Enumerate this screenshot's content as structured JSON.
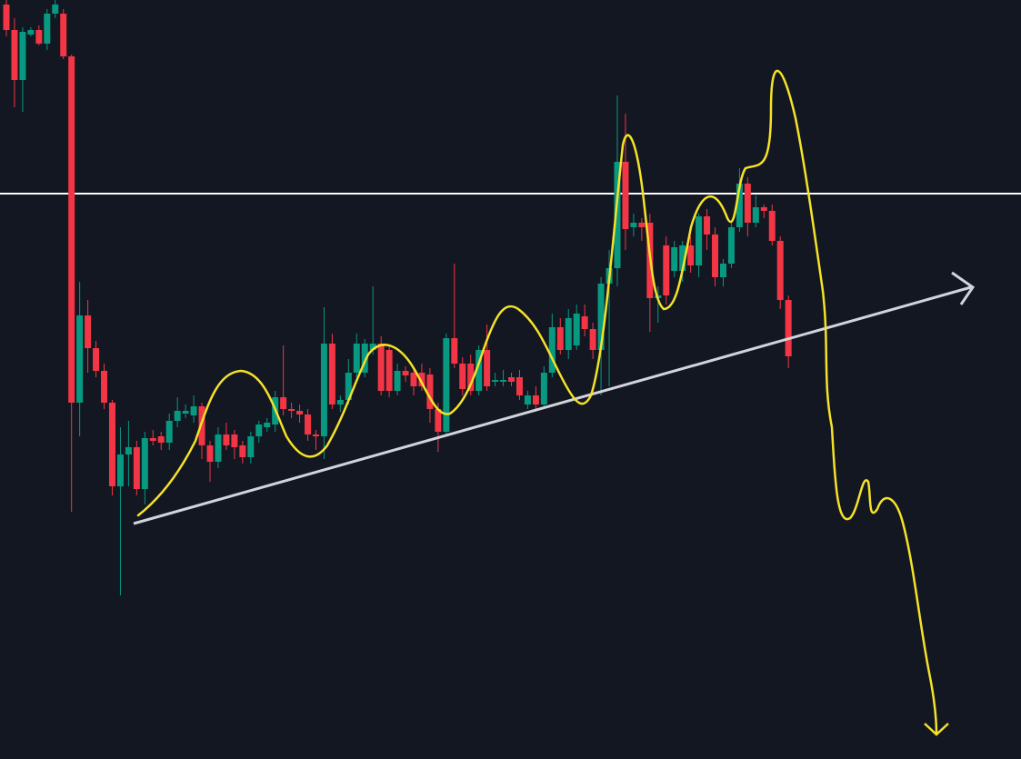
{
  "chart_data": {
    "type": "candlestick",
    "up_color": "#089981",
    "down_color": "#f23645",
    "ylim": [
      0,
      835
    ],
    "level": 622,
    "level_color": "#ffffff",
    "open": [
      830,
      802,
      747,
      797,
      802,
      787,
      820,
      820,
      773,
      392,
      488,
      452,
      427,
      392,
      300,
      335,
      343,
      297,
      353,
      355,
      348,
      372,
      380,
      378,
      388,
      345,
      327,
      357,
      357,
      345,
      332,
      355,
      365,
      368,
      398,
      385,
      383,
      379,
      357,
      355,
      457,
      390,
      395,
      425,
      425,
      450,
      457,
      450,
      405,
      427,
      425,
      425,
      423,
      385,
      360,
      463,
      435,
      435,
      405,
      450,
      415,
      415,
      420,
      420,
      390,
      400,
      390,
      425,
      475,
      450,
      455,
      487,
      473,
      450,
      523,
      540,
      657,
      585,
      590,
      590,
      507,
      565,
      537,
      537,
      565,
      543,
      597,
      577,
      530,
      545,
      585,
      633,
      590,
      607,
      603,
      570,
      505
    ],
    "high": [
      835,
      815,
      805,
      805,
      807,
      825,
      835,
      825,
      775,
      525,
      505,
      460,
      435,
      395,
      365,
      372,
      350,
      360,
      362,
      360,
      380,
      398,
      390,
      400,
      392,
      350,
      365,
      370,
      362,
      350,
      360,
      372,
      375,
      405,
      455,
      392,
      390,
      385,
      362,
      497,
      468,
      400,
      440,
      468,
      462,
      520,
      465,
      455,
      435,
      432,
      430,
      435,
      430,
      392,
      468,
      545,
      442,
      445,
      455,
      478,
      425,
      428,
      425,
      428,
      405,
      410,
      432,
      490,
      485,
      495,
      500,
      500,
      480,
      530,
      560,
      730,
      710,
      600,
      595,
      600,
      520,
      575,
      570,
      570,
      575,
      600,
      605,
      585,
      550,
      590,
      650,
      640,
      620,
      610,
      610,
      575,
      510
    ],
    "low": [
      795,
      717,
      712,
      795,
      785,
      780,
      815,
      770,
      272,
      355,
      425,
      420,
      385,
      290,
      180,
      300,
      290,
      280,
      345,
      340,
      340,
      365,
      375,
      370,
      330,
      305,
      320,
      340,
      330,
      325,
      325,
      348,
      360,
      360,
      378,
      375,
      370,
      350,
      340,
      330,
      385,
      382,
      390,
      420,
      420,
      445,
      400,
      398,
      400,
      415,
      400,
      405,
      370,
      338,
      355,
      430,
      400,
      400,
      400,
      405,
      410,
      410,
      410,
      395,
      385,
      382,
      385,
      420,
      445,
      440,
      450,
      465,
      440,
      400,
      410,
      520,
      560,
      575,
      570,
      470,
      480,
      500,
      530,
      525,
      535,
      530,
      560,
      520,
      520,
      540,
      580,
      575,
      585,
      595,
      565,
      495,
      430
    ],
    "close": [
      802,
      747,
      800,
      802,
      787,
      820,
      830,
      773,
      392,
      488,
      452,
      427,
      392,
      300,
      335,
      343,
      297,
      353,
      350,
      348,
      372,
      383,
      383,
      388,
      345,
      327,
      357,
      345,
      343,
      332,
      355,
      368,
      370,
      398,
      385,
      383,
      379,
      357,
      355,
      457,
      390,
      395,
      425,
      457,
      457,
      457,
      405,
      405,
      427,
      422,
      410,
      410,
      385,
      360,
      463,
      435,
      407,
      405,
      450,
      410,
      417,
      417,
      415,
      400,
      400,
      390,
      425,
      475,
      450,
      485,
      490,
      473,
      450,
      523,
      540,
      657,
      583,
      590,
      585,
      507,
      510,
      510,
      563,
      565,
      543,
      597,
      577,
      530,
      545,
      585,
      633,
      590,
      607,
      603,
      570,
      505,
      443
    ]
  }
}
